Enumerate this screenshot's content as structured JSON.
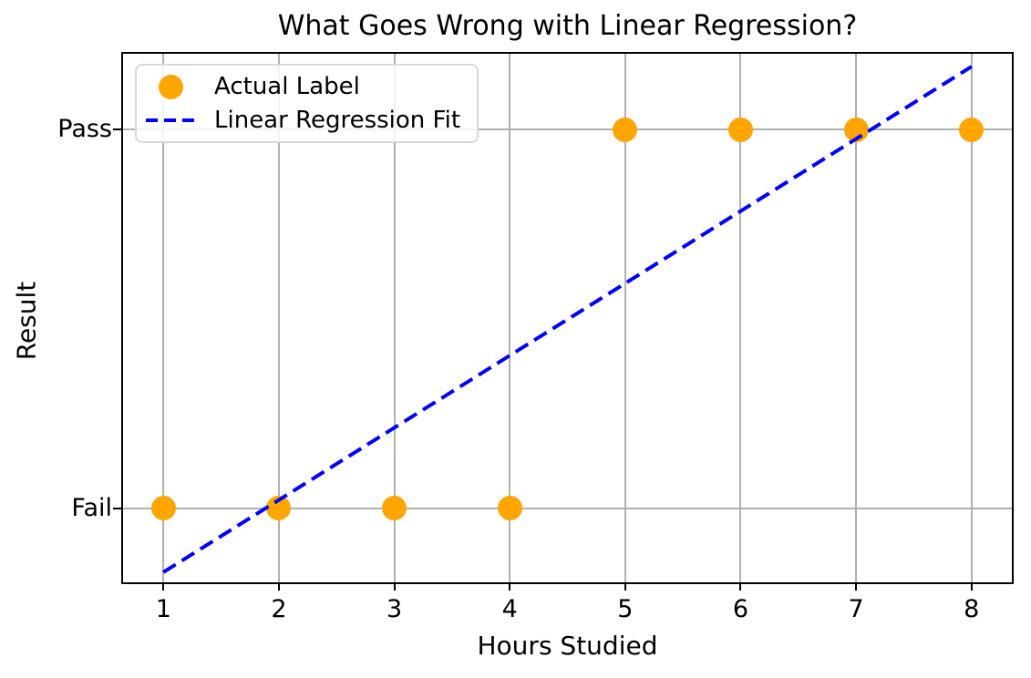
{
  "figure": {
    "title": "What Goes Wrong with Linear Regression?",
    "xlabel": "Hours Studied",
    "ylabel": "Result"
  },
  "legend": {
    "position": "upper left",
    "items": [
      {
        "label": "Actual Label",
        "marker": "circle",
        "color": "#ffa500"
      },
      {
        "label": "Linear Regression Fit",
        "marker": "dashed-line",
        "color": "#0000ff"
      }
    ]
  },
  "chart_data": {
    "type": "scatter",
    "title": "What Goes Wrong with Linear Regression?",
    "xlabel": "Hours Studied",
    "ylabel": "Result",
    "xticks": [
      1,
      2,
      3,
      4,
      5,
      6,
      7,
      8
    ],
    "yticks": [
      {
        "value": 0,
        "label": "Fail"
      },
      {
        "value": 1,
        "label": "Pass"
      }
    ],
    "xlim": [
      0.65,
      8.35
    ],
    "ylim": [
      -0.195,
      1.2
    ],
    "grid": true,
    "legend_position": "upper left",
    "series": [
      {
        "name": "Actual Label",
        "type": "scatter",
        "color": "#ffa500",
        "marker_diameter_px": 27,
        "x": [
          1,
          2,
          3,
          4,
          5,
          6,
          7,
          8
        ],
        "y": [
          0,
          0,
          0,
          0,
          1,
          1,
          1,
          1
        ],
        "y_meaning": [
          "Fail",
          "Fail",
          "Fail",
          "Fail",
          "Pass",
          "Pass",
          "Pass",
          "Pass"
        ]
      },
      {
        "name": "Linear Regression Fit",
        "type": "line",
        "linestyle": "dashed",
        "color": "#0000ff",
        "x": [
          1,
          8
        ],
        "y": [
          -0.167,
          1.167
        ]
      }
    ],
    "colors": {
      "grid": "#b0b0b0",
      "axes": "#000000",
      "background": "#ffffff",
      "scatter": "#ffa500",
      "fit_line": "#0000ff"
    }
  }
}
